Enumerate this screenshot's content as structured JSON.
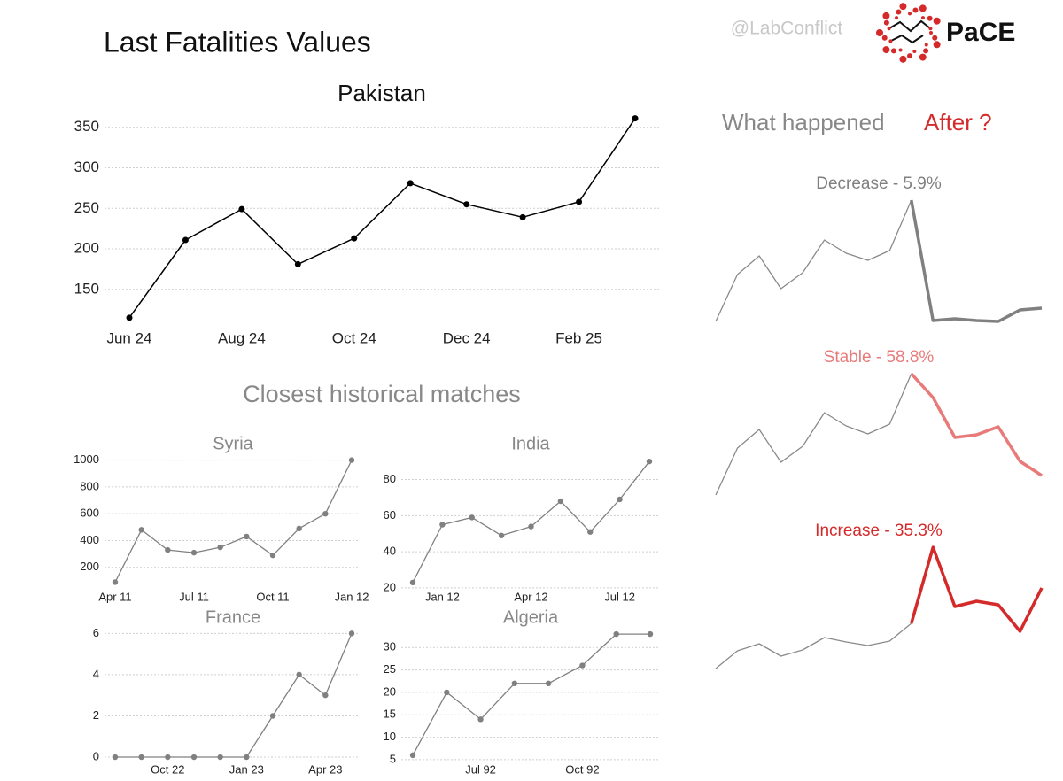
{
  "header": {
    "title": "Last Fatalities Values",
    "handle": "@LabConflict",
    "brand": "PaCE"
  },
  "matches_heading": "Closest historical matches",
  "outlook_heading": {
    "text": "What happened",
    "highlight": "After ?",
    "highlight_color": "#d42a2a"
  },
  "chart_data": [
    {
      "type": "line",
      "title": "Pakistan",
      "color": "#000000",
      "grid": true,
      "categories": [
        "Jun 24",
        null,
        "Aug 24",
        null,
        "Oct 24",
        null,
        "Dec 24",
        null,
        "Feb 25",
        null
      ],
      "values": [
        115,
        211,
        249,
        181,
        213,
        281,
        255,
        239,
        258,
        361
      ],
      "ylim": [
        105,
        365
      ],
      "yticks": [
        150,
        200,
        250,
        300,
        350
      ]
    },
    {
      "type": "line",
      "title": "Syria",
      "color": "#808080",
      "grid": true,
      "categories": [
        "Apr 11",
        null,
        null,
        "Jul 11",
        null,
        null,
        "Oct 11",
        null,
        null,
        "Jan 12"
      ],
      "values": [
        90,
        480,
        330,
        310,
        350,
        430,
        290,
        490,
        600,
        1000
      ],
      "ylim": [
        60,
        1050
      ],
      "yticks": [
        200,
        400,
        600,
        800,
        1000
      ]
    },
    {
      "type": "line",
      "title": "India",
      "color": "#808080",
      "grid": true,
      "categories": [
        null,
        "Jan 12",
        null,
        null,
        "Apr 12",
        null,
        null,
        "Jul 12",
        null
      ],
      "values": [
        23,
        55,
        59,
        49,
        54,
        68,
        51,
        69,
        90
      ],
      "ylim": [
        18,
        94
      ],
      "yticks": [
        20,
        40,
        60,
        80
      ]
    },
    {
      "type": "line",
      "title": "France",
      "color": "#808080",
      "grid": true,
      "categories": [
        null,
        null,
        "Oct 22",
        null,
        null,
        "Jan 23",
        null,
        null,
        "Apr 23",
        null
      ],
      "values": [
        0,
        0,
        0,
        0,
        0,
        0,
        2,
        4,
        3,
        6
      ],
      "ylim": [
        -0.3,
        6.4
      ],
      "yticks": [
        0,
        2,
        4,
        6
      ]
    },
    {
      "type": "line",
      "title": "Algeria",
      "color": "#808080",
      "grid": true,
      "categories": [
        null,
        null,
        "Jul 92",
        null,
        null,
        "Oct 92",
        null,
        null
      ],
      "values": [
        6,
        20,
        14,
        22,
        22,
        26,
        33,
        33
      ],
      "ylim": [
        4,
        34
      ],
      "yticks": [
        5,
        10,
        15,
        20,
        25,
        30
      ]
    },
    {
      "type": "line",
      "title": "Decrease - 5.9%",
      "title_color": "#808080",
      "grid": false,
      "ylim": [
        0,
        150
      ],
      "series": [
        {
          "color": "#8a8a8a",
          "values": [
            7,
            60,
            81,
            44,
            62,
            99,
            84,
            76,
            87,
            144,
            null,
            null,
            null,
            null,
            null,
            null
          ]
        },
        {
          "color": "#808080",
          "values": [
            null,
            null,
            null,
            null,
            null,
            null,
            null,
            null,
            null,
            144,
            8,
            10,
            8,
            7,
            20,
            22
          ]
        }
      ]
    },
    {
      "type": "line",
      "title": "Stable - 58.8%",
      "title_color": "#e87a7a",
      "grid": false,
      "ylim": [
        0,
        150
      ],
      "series": [
        {
          "color": "#8a8a8a",
          "values": [
            6,
            59,
            80,
            43,
            61,
            99,
            84,
            75,
            86,
            143,
            null,
            null,
            null,
            null,
            null,
            null
          ]
        },
        {
          "color": "#e87a7a",
          "values": [
            null,
            null,
            null,
            null,
            null,
            null,
            null,
            null,
            null,
            143,
            116,
            71,
            74,
            83,
            44,
            28
          ]
        }
      ]
    },
    {
      "type": "line",
      "title": "Increase - 35.3%",
      "title_color": "#d42a2a",
      "grid": false,
      "ylim": [
        0,
        150
      ],
      "series": [
        {
          "color": "#8a8a8a",
          "values": [
            5,
            25,
            33,
            19,
            26,
            40,
            35,
            31,
            36,
            56,
            null,
            null,
            null,
            null,
            null,
            null
          ]
        },
        {
          "color": "#d42a2a",
          "values": [
            null,
            null,
            null,
            null,
            null,
            null,
            null,
            null,
            null,
            56,
            142,
            75,
            81,
            77,
            47,
            96
          ]
        }
      ]
    }
  ]
}
